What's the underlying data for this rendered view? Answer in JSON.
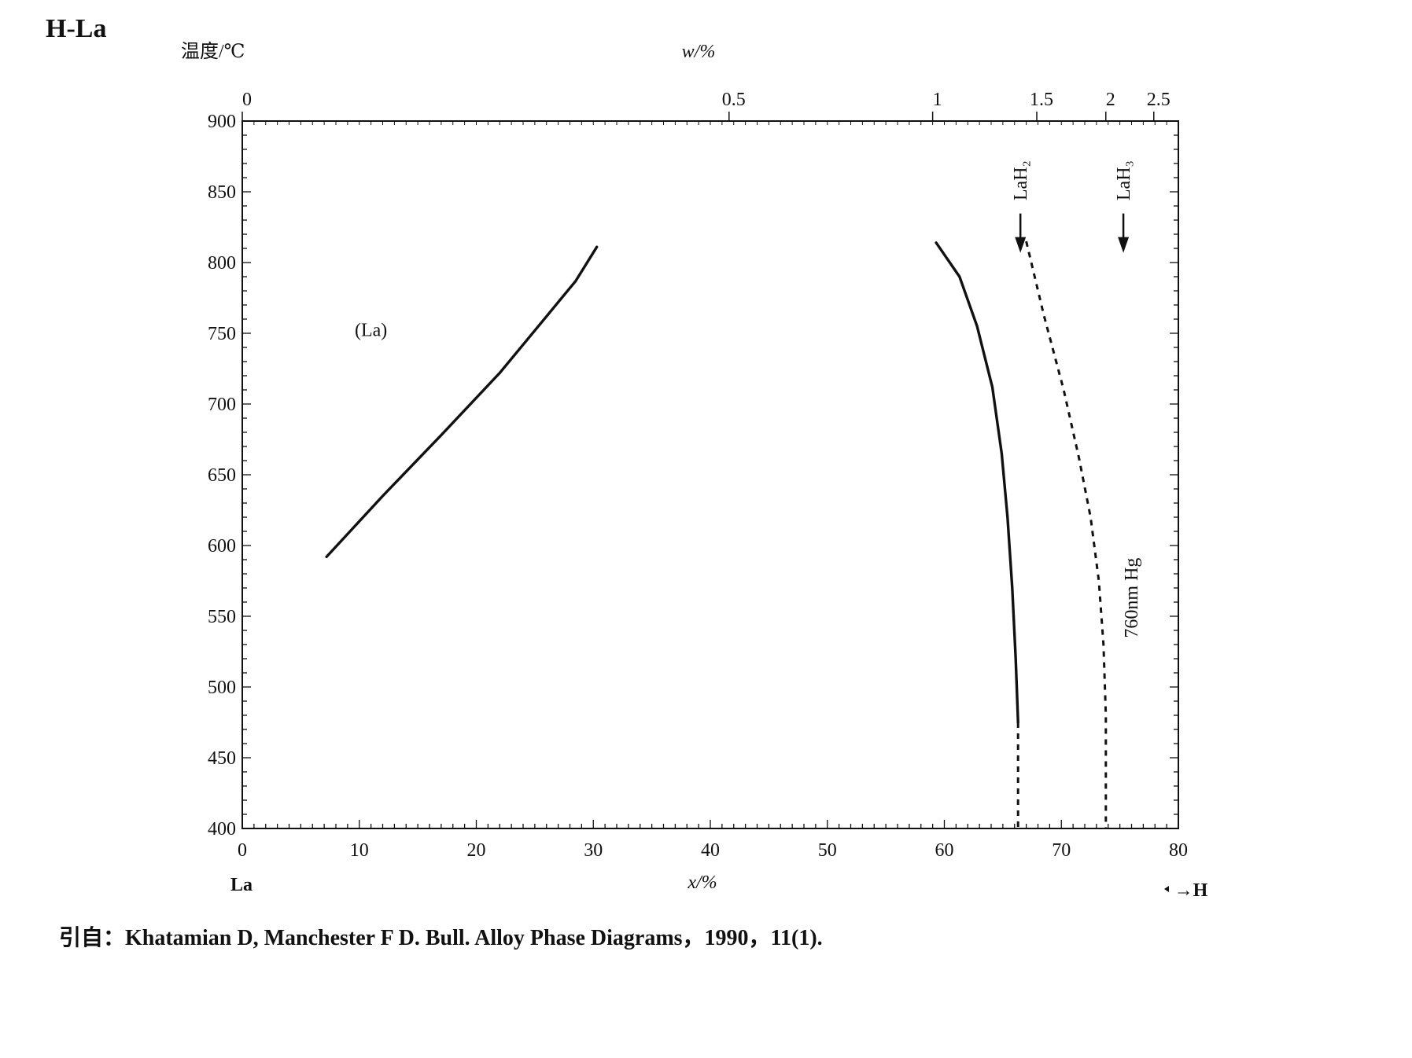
{
  "chart_data": {
    "type": "line",
    "title": "H-La",
    "ylabel": "温度/℃",
    "xlabel": "x/%",
    "x2label": "w/%",
    "left_component": "La",
    "right_component": "→H",
    "xlim": [
      0,
      80
    ],
    "ylim": [
      400,
      900
    ],
    "x_ticks": [
      0,
      10,
      20,
      30,
      40,
      50,
      60,
      70,
      80
    ],
    "y_ticks": [
      400,
      450,
      500,
      550,
      600,
      650,
      700,
      750,
      800,
      850,
      900
    ],
    "top_ticks": [
      {
        "label": "0",
        "x": 0
      },
      {
        "label": "0.5",
        "x": 41.6
      },
      {
        "label": "1",
        "x": 59.0
      },
      {
        "label": "1.5",
        "x": 67.9
      },
      {
        "label": "2",
        "x": 73.8
      },
      {
        "label": "2.5",
        "x": 77.9
      }
    ],
    "annotations": [
      {
        "text": "(La)",
        "x": 11,
        "y": 748
      },
      {
        "text": "LaH₂",
        "x": 66.5,
        "y": 858,
        "arrow": "down"
      },
      {
        "text": "LaH₃",
        "x": 75.3,
        "y": 858,
        "arrow": "down"
      },
      {
        "text": "760nm Hg",
        "x": 76.5,
        "y": 563
      }
    ],
    "series": [
      {
        "style": "solid",
        "points": [
          [
            7.2,
            592
          ],
          [
            12,
            635
          ],
          [
            17,
            678
          ],
          [
            22,
            722
          ],
          [
            26,
            762
          ],
          [
            28.5,
            787
          ],
          [
            30.3,
            811
          ]
        ]
      },
      {
        "style": "solid",
        "points": [
          [
            59.3,
            814
          ],
          [
            61.3,
            790
          ],
          [
            62.8,
            755
          ],
          [
            64.1,
            712
          ],
          [
            64.9,
            665
          ],
          [
            65.4,
            620
          ],
          [
            65.8,
            570
          ],
          [
            66.1,
            520
          ],
          [
            66.3,
            475
          ]
        ]
      },
      {
        "style": "dashed",
        "points": [
          [
            66.3,
            475
          ],
          [
            66.3,
            400
          ]
        ]
      },
      {
        "style": "dashed",
        "points": [
          [
            67.0,
            815
          ],
          [
            68.5,
            763
          ],
          [
            70.2,
            710
          ],
          [
            71.5,
            662
          ],
          [
            72.5,
            620
          ],
          [
            73.2,
            575
          ],
          [
            73.6,
            530
          ],
          [
            73.8,
            480
          ],
          [
            73.8,
            400
          ]
        ]
      }
    ]
  },
  "citation": "引自：Khatamian D, Manchester F D. Bull.  Alloy Phase Diagrams，1990，11(1)."
}
